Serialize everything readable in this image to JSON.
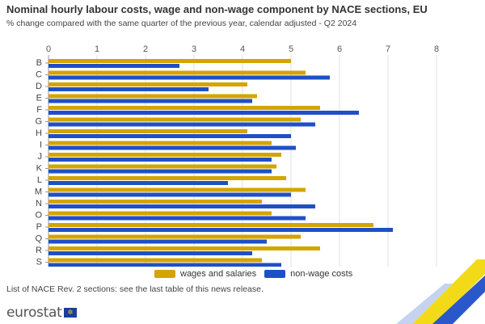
{
  "title": "Nominal hourly labour costs, wage and non-wage component by NACE sections, EU",
  "subtitle": "% change compared with the same quarter of the previous year, calendar adjusted - Q2 2024",
  "footnote": "List of NACE Rev. 2 sections: see the last table of this news release.",
  "brand": "eurostat",
  "colors": {
    "wages": "#d4a400",
    "nonwage": "#1f4fc8",
    "grid": "#e2e2e2",
    "text": "#333333"
  },
  "chart_data": {
    "type": "bar",
    "orientation": "horizontal",
    "categories": [
      "B",
      "C",
      "D",
      "E",
      "F",
      "G",
      "H",
      "I",
      "J",
      "K",
      "L",
      "M",
      "N",
      "O",
      "P",
      "Q",
      "R",
      "S"
    ],
    "series": [
      {
        "name": "wages and salaries",
        "values": [
          5.0,
          5.3,
          4.1,
          4.3,
          5.6,
          5.2,
          4.1,
          4.6,
          4.8,
          4.7,
          4.9,
          5.3,
          4.4,
          4.6,
          6.7,
          5.2,
          5.6,
          4.4
        ]
      },
      {
        "name": "non-wage costs",
        "values": [
          2.7,
          5.8,
          3.3,
          4.2,
          6.4,
          5.5,
          5.0,
          5.1,
          4.6,
          4.6,
          3.7,
          5.0,
          5.5,
          5.3,
          7.1,
          4.5,
          4.2,
          4.8
        ]
      }
    ],
    "xlim": [
      0,
      8
    ],
    "xticks": [
      0,
      1,
      2,
      3,
      4,
      5,
      6,
      7,
      8
    ],
    "grid": true,
    "legend_position": "bottom"
  }
}
